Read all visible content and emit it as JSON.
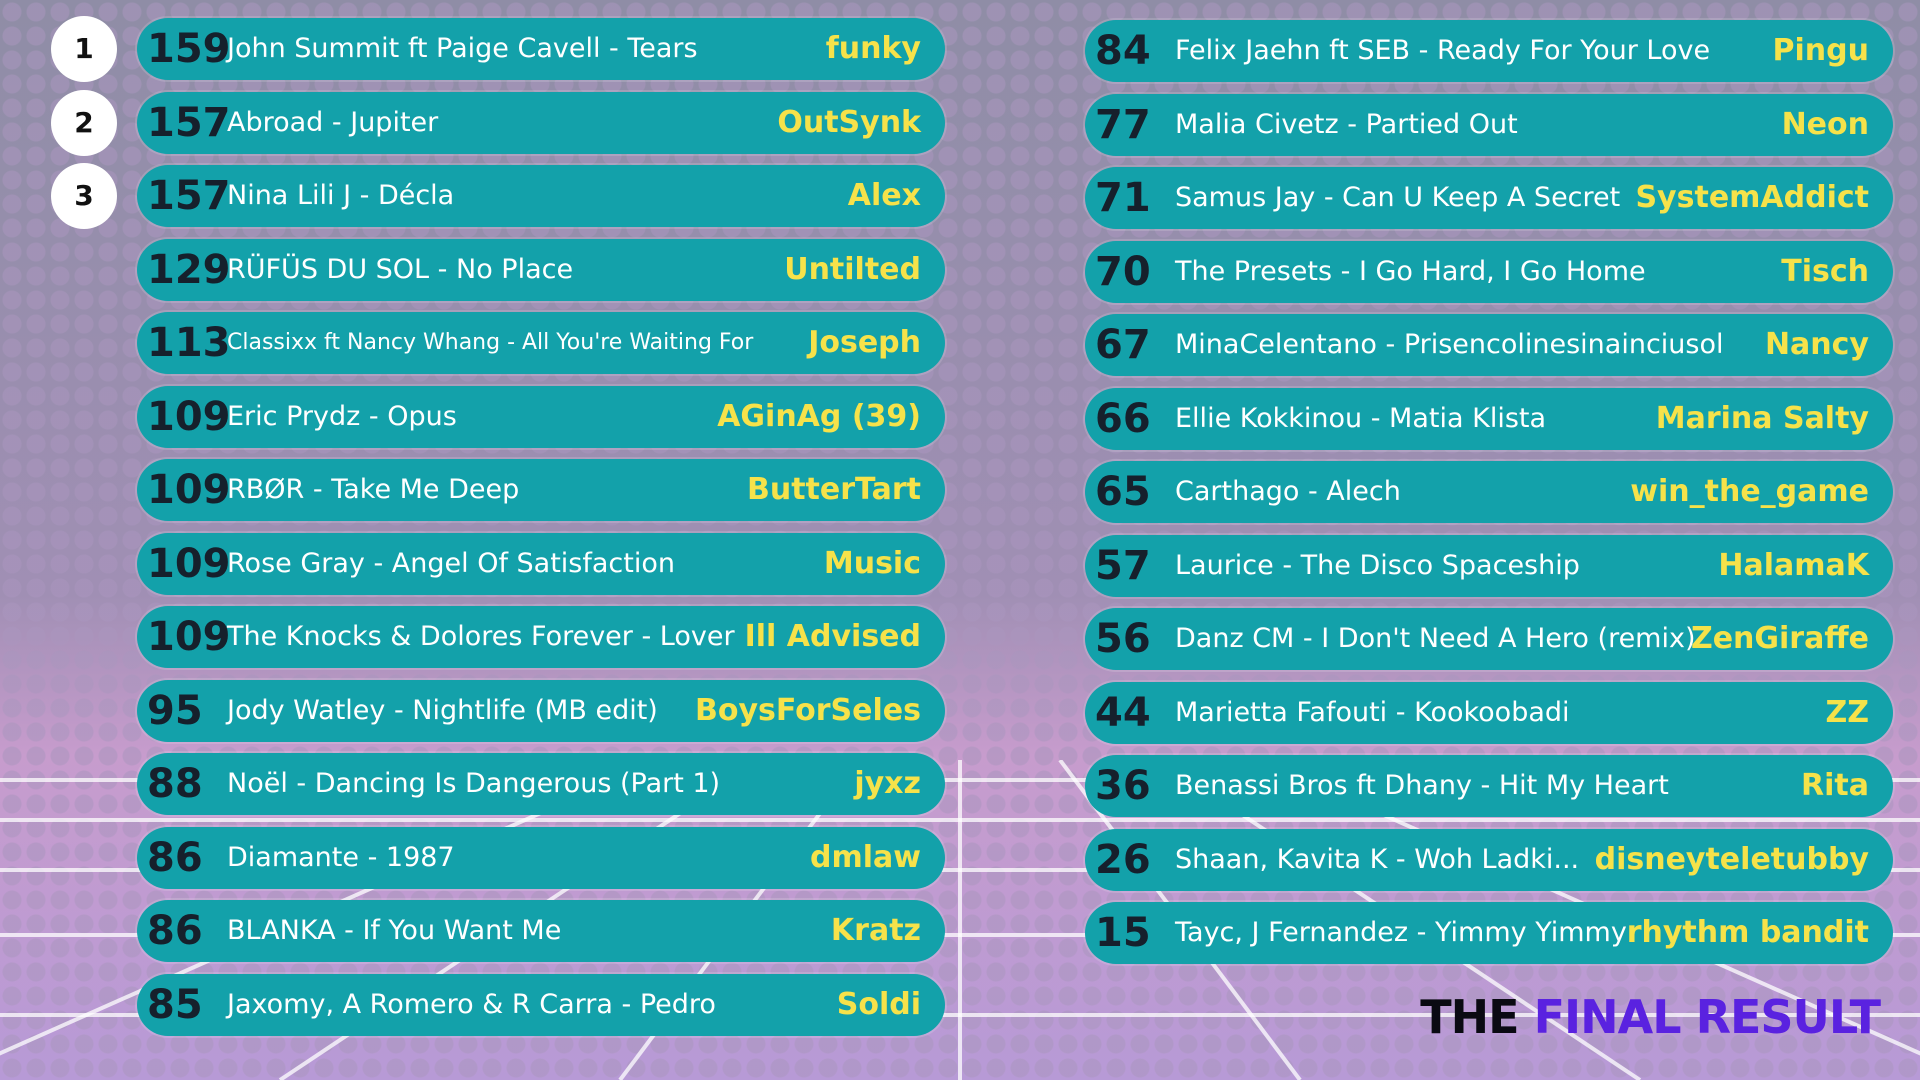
{
  "title": {
    "first": "THE",
    "second": "FINAL RESULT"
  },
  "entries": [
    {
      "rank": 1,
      "score": 159,
      "song": "John Summit ft Paige Cavell - Tears",
      "user": "funky"
    },
    {
      "rank": 2,
      "score": 157,
      "song": "Abroad - Jupiter",
      "user": "OutSynk"
    },
    {
      "rank": 3,
      "score": 157,
      "song": "Nina Lili J - Décla",
      "user": "Alex"
    },
    {
      "score": 129,
      "song": "RÜFÜS DU SOL - No Place",
      "user": "Untilted"
    },
    {
      "score": 113,
      "song": "Classixx ft Nancy Whang - All You're Waiting For",
      "user": "Joseph"
    },
    {
      "score": 109,
      "song": "Eric Prydz - Opus",
      "user": "AGinAg (39)"
    },
    {
      "score": 109,
      "song": "RBØR - Take Me Deep",
      "user": "ButterTart"
    },
    {
      "score": 109,
      "song": "Rose Gray - Angel Of Satisfaction",
      "user": "Music"
    },
    {
      "score": 109,
      "song": "The Knocks & Dolores Forever - Lover",
      "user": "Ill Advised"
    },
    {
      "score": 95,
      "song": "Jody Watley - Nightlife (MB edit)",
      "user": "BoysForSeles"
    },
    {
      "score": 88,
      "song": "Noël - Dancing Is Dangerous (Part 1)",
      "user": "jyxz"
    },
    {
      "score": 86,
      "song": "Diamante - 1987",
      "user": "dmlaw"
    },
    {
      "score": 86,
      "song": "BLANKA - If You Want Me",
      "user": "Kratz"
    },
    {
      "score": 85,
      "song": "Jaxomy, A Romero & R Carra - Pedro",
      "user": "Soldi"
    },
    {
      "score": 84,
      "song": "Felix Jaehn ft SEB - Ready For Your Love",
      "user": "Pingu"
    },
    {
      "score": 77,
      "song": "Malia Civetz - Partied Out",
      "user": "Neon"
    },
    {
      "score": 71,
      "song": "Samus Jay - Can U Keep A Secret",
      "user": "SystemAddict"
    },
    {
      "score": 70,
      "song": "The Presets - I Go Hard, I Go Home",
      "user": "Tisch"
    },
    {
      "score": 67,
      "song": "MinaCelentano - Prisencolinesinainciusol",
      "user": "Nancy"
    },
    {
      "score": 66,
      "song": "Ellie Kokkinou - Matia Klista",
      "user": "Marina Salty"
    },
    {
      "score": 65,
      "song": "Carthago - Alech",
      "user": "win_the_game"
    },
    {
      "score": 57,
      "song": "Laurice - The Disco Spaceship",
      "user": "HalamaK"
    },
    {
      "score": 56,
      "song": "Danz CM - I Don't Need A Hero (remix)",
      "user": "ZenGiraffe"
    },
    {
      "score": 44,
      "song": "Marietta Fafouti - Kookoobadi",
      "user": "ZZ"
    },
    {
      "score": 36,
      "song": "Benassi Bros ft Dhany - Hit My Heart",
      "user": "Rita"
    },
    {
      "score": 26,
      "song": "Shaan, Kavita K - Woh Ladki...",
      "user": "disneyteletubby"
    },
    {
      "score": 15,
      "song": "Tayc, J Fernandez - Yimmy Yimmy",
      "user": "rhythm bandit"
    }
  ]
}
